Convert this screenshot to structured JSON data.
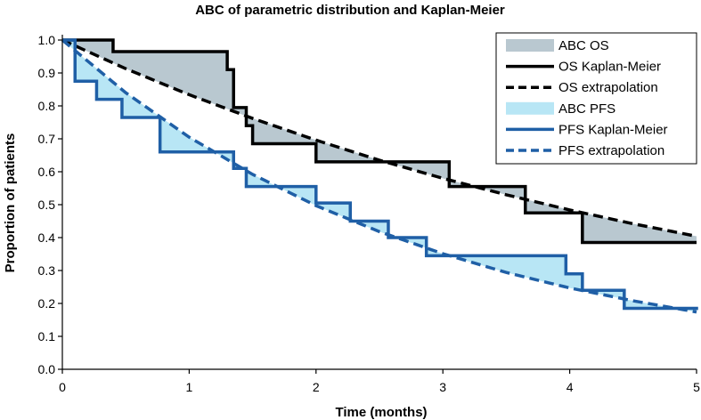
{
  "chart_data": {
    "type": "line",
    "title": "ABC of parametric distribution and Kaplan-Meier",
    "xlabel": "Time (months)",
    "ylabel": "Proportion of patients",
    "xlim": [
      0,
      5
    ],
    "ylim": [
      0,
      1.0
    ],
    "xticks": [
      "0",
      "1",
      "2",
      "3",
      "4",
      "5"
    ],
    "yticks": [
      "0.0",
      "0.1",
      "0.2",
      "0.3",
      "0.4",
      "0.5",
      "0.6",
      "0.7",
      "0.8",
      "0.9",
      "1.0"
    ],
    "grid": false,
    "legend_position": "top-right",
    "colors": {
      "os_line": "#000000",
      "os_fill": "#b9c8d0",
      "pfs_line": "#1f5fa6",
      "pfs_fill": "#b8e6f5"
    },
    "series": [
      {
        "name": "OS Kaplan-Meier",
        "style": "step",
        "x": [
          0,
          0.4,
          1.3,
          1.35,
          1.45,
          1.5,
          2.0,
          3.05,
          3.65,
          4.1,
          5.0
        ],
        "y": [
          1.0,
          0.965,
          0.91,
          0.795,
          0.74,
          0.685,
          0.63,
          0.555,
          0.475,
          0.385,
          0.385
        ]
      },
      {
        "name": "OS extrapolation",
        "style": "dashed",
        "x": [
          0,
          0.5,
          1.0,
          1.5,
          2.0,
          2.5,
          3.0,
          3.5,
          4.0,
          4.5,
          5.0
        ],
        "y": [
          1.0,
          0.913,
          0.834,
          0.762,
          0.696,
          0.635,
          0.58,
          0.53,
          0.484,
          0.442,
          0.404
        ]
      },
      {
        "name": "PFS Kaplan-Meier",
        "style": "step",
        "x": [
          0,
          0.1,
          0.27,
          0.47,
          0.77,
          1.35,
          1.45,
          2.0,
          2.27,
          2.57,
          2.87,
          3.27,
          3.97,
          4.1,
          4.43,
          5.0
        ],
        "y": [
          1.0,
          0.875,
          0.82,
          0.765,
          0.66,
          0.61,
          0.555,
          0.505,
          0.45,
          0.4,
          0.345,
          0.345,
          0.29,
          0.24,
          0.185,
          0.18
        ]
      },
      {
        "name": "PFS extrapolation",
        "style": "dashed",
        "x": [
          0,
          0.5,
          1.0,
          1.5,
          2.0,
          2.5,
          3.0,
          3.5,
          4.0,
          4.5,
          5.0
        ],
        "y": [
          1.0,
          0.84,
          0.705,
          0.592,
          0.497,
          0.418,
          0.351,
          0.294,
          0.247,
          0.208,
          0.174
        ]
      }
    ],
    "areas": [
      {
        "name": "ABC OS",
        "between": [
          "OS Kaplan-Meier",
          "OS extrapolation"
        ]
      },
      {
        "name": "ABC PFS",
        "between": [
          "PFS Kaplan-Meier",
          "PFS extrapolation"
        ]
      }
    ],
    "legend": [
      {
        "label": "ABC OS",
        "kind": "patch",
        "color": "#b9c8d0"
      },
      {
        "label": "OS Kaplan-Meier",
        "kind": "solid",
        "color": "#000000"
      },
      {
        "label": "OS extrapolation",
        "kind": "dashed",
        "color": "#000000"
      },
      {
        "label": "ABC PFS",
        "kind": "patch",
        "color": "#b8e6f5"
      },
      {
        "label": "PFS Kaplan-Meier",
        "kind": "solid",
        "color": "#1f5fa6"
      },
      {
        "label": "PFS extrapolation",
        "kind": "dashed",
        "color": "#1f5fa6"
      }
    ]
  }
}
